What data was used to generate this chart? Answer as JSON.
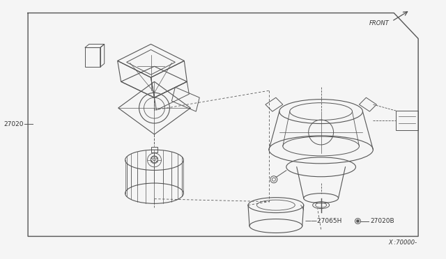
{
  "bg_color": "#f5f5f5",
  "border_color": "#555555",
  "line_color": "#555555",
  "text_color": "#333333",
  "label_27020": "27020",
  "label_27065H": "27065H",
  "label_27020B": "27020B",
  "label_x70000": "X :70000-",
  "label_front": "FRONT"
}
